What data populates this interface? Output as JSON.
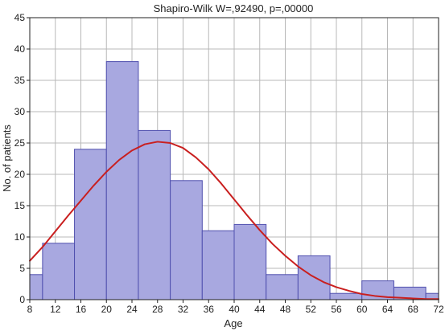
{
  "chart_data": {
    "type": "bar",
    "title": "Shapiro-Wilk W=,92490, p=,00000",
    "xlabel": "Age",
    "ylabel": "No. of patients",
    "xlim": [
      8,
      72
    ],
    "ylim": [
      0,
      45
    ],
    "x_ticks": [
      8,
      12,
      16,
      20,
      24,
      28,
      32,
      36,
      40,
      44,
      48,
      52,
      56,
      60,
      64,
      68,
      72
    ],
    "y_ticks": [
      0,
      5,
      10,
      15,
      20,
      25,
      30,
      35,
      40,
      45
    ],
    "grid": true,
    "bins": [
      {
        "start": 8,
        "end": 10,
        "value": 4
      },
      {
        "start": 10,
        "end": 15,
        "value": 9
      },
      {
        "start": 15,
        "end": 20,
        "value": 24
      },
      {
        "start": 20,
        "end": 25,
        "value": 38
      },
      {
        "start": 25,
        "end": 30,
        "value": 27
      },
      {
        "start": 30,
        "end": 35,
        "value": 19
      },
      {
        "start": 35,
        "end": 40,
        "value": 11
      },
      {
        "start": 40,
        "end": 45,
        "value": 12
      },
      {
        "start": 45,
        "end": 50,
        "value": 4
      },
      {
        "start": 50,
        "end": 55,
        "value": 7
      },
      {
        "start": 55,
        "end": 60,
        "value": 1
      },
      {
        "start": 60,
        "end": 65,
        "value": 3
      },
      {
        "start": 65,
        "end": 70,
        "value": 2
      },
      {
        "start": 70,
        "end": 72,
        "value": 1
      }
    ],
    "fit_curve": {
      "type": "normal",
      "x": [
        8,
        10,
        12,
        14,
        16,
        18,
        20,
        22,
        24,
        26,
        28,
        30,
        32,
        34,
        36,
        38,
        40,
        42,
        44,
        46,
        48,
        50,
        52,
        54,
        56,
        58,
        60,
        62,
        64,
        66,
        68,
        70,
        72
      ],
      "y": [
        6.2,
        8.4,
        10.9,
        13.4,
        15.8,
        18.2,
        20.4,
        22.3,
        23.8,
        24.8,
        25.2,
        25.0,
        24.2,
        22.7,
        20.8,
        18.5,
        16.0,
        13.5,
        11.1,
        8.9,
        7.0,
        5.3,
        3.9,
        2.8,
        2.0,
        1.4,
        0.9,
        0.6,
        0.4,
        0.3,
        0.2,
        0.1,
        0.1
      ]
    },
    "colors": {
      "bar_fill": "#a8a8e0",
      "bar_stroke": "#4f4fae",
      "curve": "#c91f1f",
      "grid": "#b8b8b8",
      "axis": "#222222"
    }
  }
}
